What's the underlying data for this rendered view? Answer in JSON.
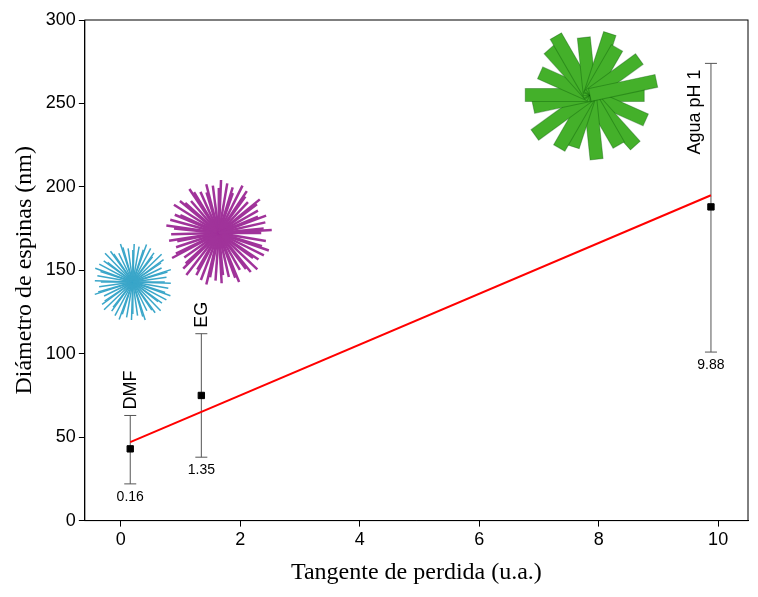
{
  "chart_data": {
    "type": "scatter",
    "x_label": "Tangente de perdida (u.a.)",
    "y_label": "Diámetro de espinas (nm)",
    "x": [
      0.16,
      1.35,
      9.88
    ],
    "values": [
      43,
      75,
      188
    ],
    "y_low": [
      22,
      38,
      101
    ],
    "y_high": [
      63,
      112,
      274
    ],
    "labels": [
      "DMF",
      "EG",
      "Agua pH 1"
    ],
    "data_labels": true,
    "color": "#000000",
    "marker": "square",
    "fit": {
      "x": [
        0.16,
        9.88
      ],
      "values": [
        47,
        195
      ],
      "color": "#ff0000",
      "line_style": "solid"
    },
    "xlim": [
      -0.6,
      10.5
    ],
    "xticks": [
      0,
      2,
      4,
      6,
      8,
      10
    ],
    "ylim": [
      0,
      300
    ],
    "yticks": [
      0,
      50,
      100,
      150,
      200,
      250,
      300
    ],
    "grid": false
  }
}
